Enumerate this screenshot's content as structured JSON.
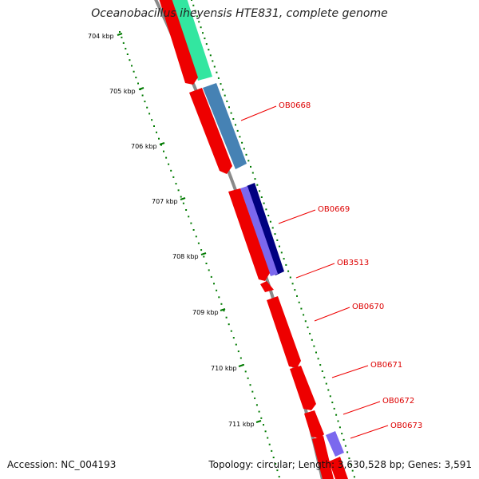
{
  "title": "Oceanobacillus iheyensis HTE831, complete genome",
  "footer": {
    "accession": "Accession: NC_004193",
    "stats": "Topology: circular; Length: 3,630,528 bp; Genes: 3,591"
  },
  "kbp_labels": [
    "704 kbp",
    "705 kbp",
    "706 kbp",
    "707 kbp",
    "708 kbp",
    "709 kbp",
    "710 kbp",
    "711 kbp"
  ],
  "gene_labels": [
    "OB0668",
    "OB0669",
    "OB3513",
    "OB0670",
    "OB0671",
    "OB0672",
    "OB0673"
  ],
  "colors": {
    "backbone": "#8a8a8a",
    "gene_red": "#ee0000",
    "gene_teal": "#33e6a0",
    "gene_steel": "#4682b4",
    "gene_navy": "#000080",
    "gene_purple": "#7b68ee",
    "ticks": "#007a00",
    "label_red": "#dd0000"
  }
}
